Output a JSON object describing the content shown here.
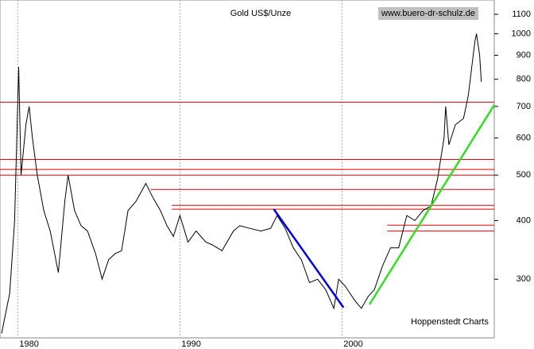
{
  "chart_data": {
    "type": "line",
    "title": "Gold US$/Unze",
    "source": "www.buero-dr-schulz.de",
    "credit": "Hoppenstedt Charts",
    "log_scale": true,
    "color": "#000000",
    "x": [
      1979.0,
      1979.5,
      1979.8,
      1980.05,
      1980.2,
      1980.5,
      1980.7,
      1980.9,
      1981.2,
      1981.6,
      1982.0,
      1982.5,
      1982.9,
      1983.1,
      1983.5,
      1983.9,
      1984.3,
      1984.8,
      1985.2,
      1985.6,
      1986.0,
      1986.4,
      1986.8,
      1987.3,
      1987.9,
      1988.3,
      1988.8,
      1989.2,
      1989.6,
      1990.0,
      1990.5,
      1991.0,
      1991.6,
      1992.0,
      1992.6,
      1993.3,
      1993.7,
      1994.3,
      1995.0,
      1995.6,
      1996.0,
      1996.5,
      1997.0,
      1997.5,
      1998.0,
      1998.5,
      1999.0,
      1999.5,
      1999.8,
      2000.2,
      2000.8,
      2001.2,
      2001.6,
      2002.0,
      2002.5,
      2003.0,
      2003.5,
      2004.0,
      2004.5,
      2005.0,
      2005.5,
      2005.9,
      2006.3,
      2006.4,
      2006.6,
      2007.0,
      2007.5,
      2007.8,
      2008.2,
      2008.3,
      2008.5,
      2008.6
    ],
    "values": [
      230,
      280,
      400,
      850,
      500,
      640,
      700,
      600,
      500,
      420,
      380,
      310,
      440,
      500,
      420,
      390,
      380,
      340,
      300,
      330,
      340,
      345,
      420,
      440,
      480,
      450,
      420,
      390,
      370,
      410,
      360,
      380,
      360,
      355,
      345,
      380,
      390,
      385,
      380,
      385,
      410,
      385,
      350,
      330,
      295,
      300,
      285,
      260,
      300,
      290,
      270,
      260,
      275,
      285,
      320,
      350,
      350,
      410,
      400,
      420,
      430,
      490,
      600,
      700,
      580,
      640,
      660,
      740,
      960,
      1000,
      900,
      790
    ],
    "xlim": [
      1978.9,
      2009.4
    ],
    "ylim": [
      225,
      1180
    ],
    "xticks": [
      1980,
      1990,
      2000
    ],
    "yticks": [
      300,
      400,
      500,
      600,
      700,
      800,
      900,
      1000,
      1100
    ],
    "levels": {
      "color": "#e00000",
      "items": [
        {
          "value": 715
        },
        {
          "value": 540
        },
        {
          "value": 514
        },
        {
          "value": 500
        },
        {
          "value": 466,
          "from": 1988.2
        },
        {
          "value": 431,
          "from": 1989.5
        },
        {
          "value": 423,
          "from": 1989.5
        },
        {
          "value": 391,
          "from": 2002.8
        },
        {
          "value": 380,
          "from": 2002.8
        }
      ]
    },
    "trendlines": [
      {
        "color": "#0000e0",
        "x": [
          1995.8,
          2000.1
        ],
        "values": [
          423,
          261
        ]
      },
      {
        "color": "#33dd22",
        "x": [
          2001.7,
          2009.4
        ],
        "values": [
          265,
          705
        ]
      }
    ]
  }
}
